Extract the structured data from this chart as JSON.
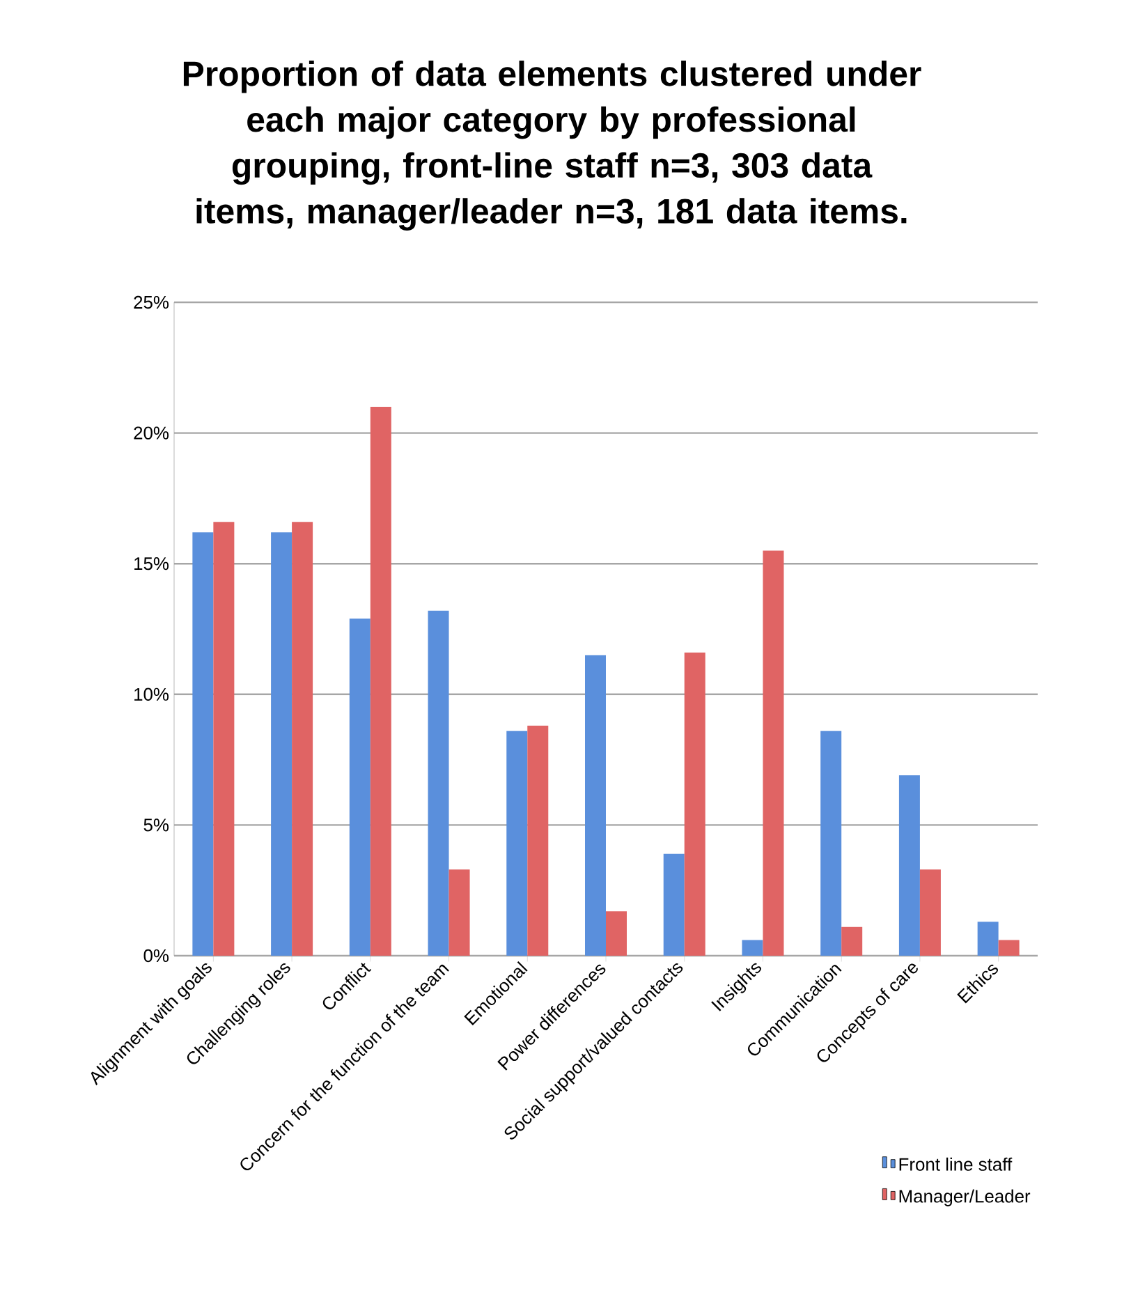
{
  "chart_data": {
    "type": "bar",
    "title": "Proportion of data elements clustered under each major category by professional grouping, front-line staff n=3, 303 data items, manager/leader n=3, 181 data items.",
    "categories": [
      "Alignment with goals",
      "Challenging roles",
      "Conflict",
      "Concern for the function of the team",
      "Emotional",
      "Power differences",
      "Social support/valued contacts",
      "Insights",
      "Communication",
      "Concepts of care",
      "Ethics"
    ],
    "series": [
      {
        "name": "Front line staff",
        "color": "#5a8fdc",
        "values": [
          16.2,
          16.2,
          12.9,
          13.2,
          8.6,
          11.5,
          3.9,
          0.6,
          8.6,
          6.9,
          1.3
        ]
      },
      {
        "name": "Manager/Leader",
        "color": "#e06464",
        "values": [
          16.6,
          16.6,
          21.0,
          3.3,
          8.8,
          1.7,
          11.6,
          15.5,
          1.1,
          3.3,
          0.6
        ]
      }
    ],
    "ylim": [
      0,
      25
    ],
    "yticks": [
      {
        "value": 0,
        "label": "0%"
      },
      {
        "value": 5,
        "label": "5%"
      },
      {
        "value": 10,
        "label": "10%"
      },
      {
        "value": 15,
        "label": "15%"
      },
      {
        "value": 20,
        "label": "20%"
      },
      {
        "value": 25,
        "label": "25%"
      }
    ],
    "grid": "y",
    "legend": "bottom right"
  }
}
